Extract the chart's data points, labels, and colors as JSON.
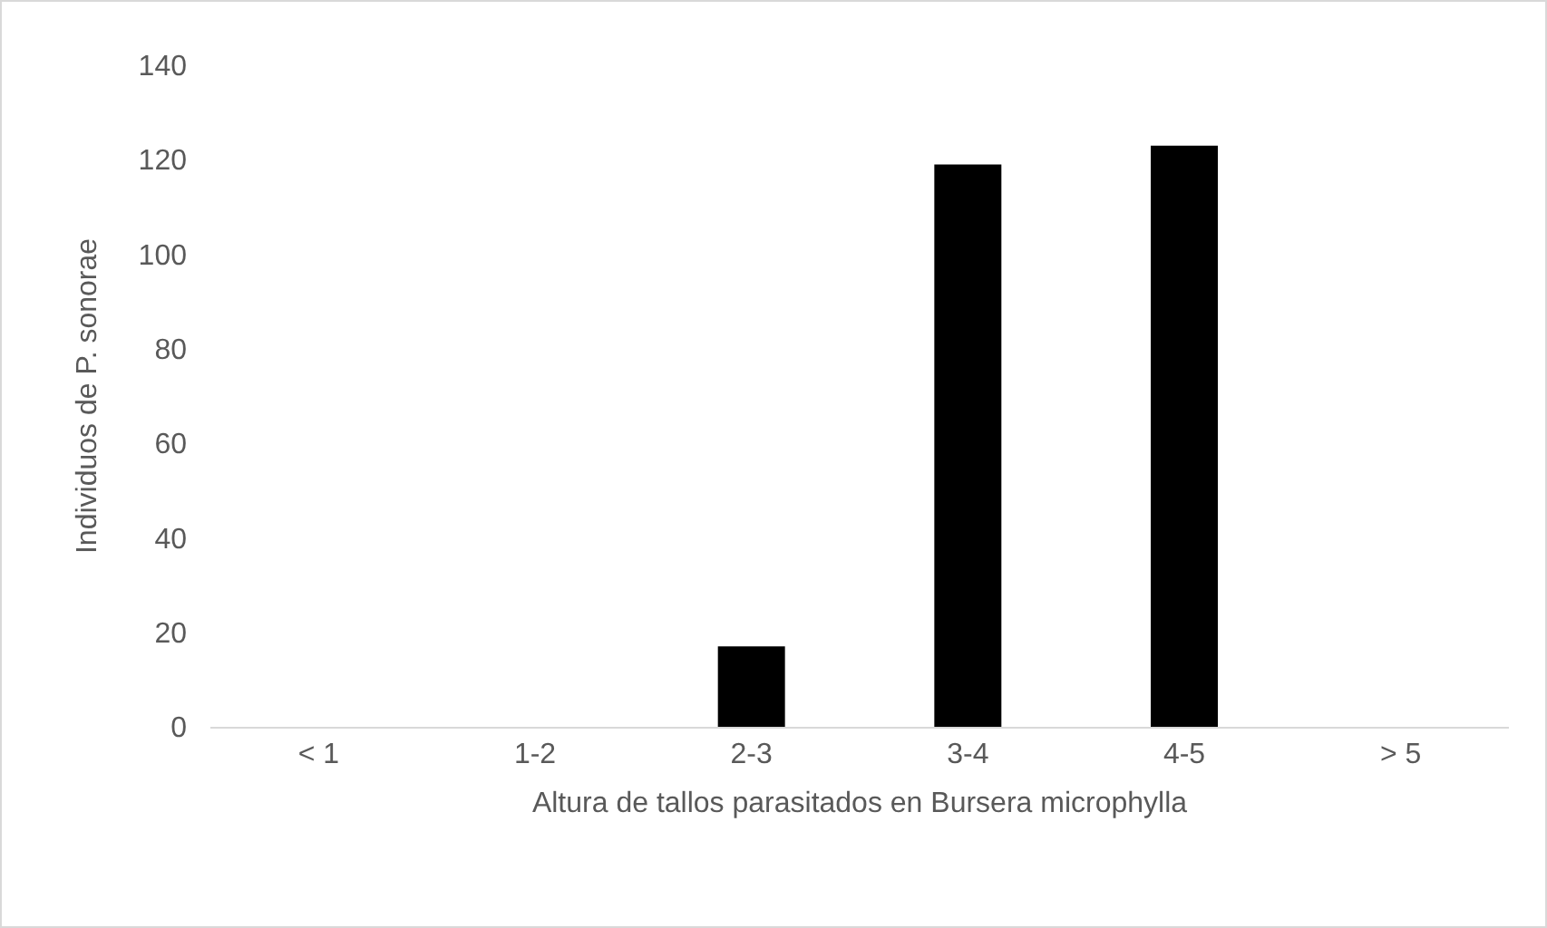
{
  "chart_data": {
    "type": "bar",
    "xlabel": "Altura de tallos parasitados en Bursera microphylla",
    "ylabel": "Individuos de P. sonorae",
    "categories": [
      "< 1",
      "1-2",
      "2-3",
      "3-4",
      "4-5",
      "> 5"
    ],
    "values": [
      0,
      0,
      17,
      119,
      123,
      0
    ],
    "color": "#000000",
    "ylim": [
      0,
      140
    ],
    "yticks": [
      0,
      20,
      40,
      60,
      80,
      100,
      120,
      140
    ],
    "grid": false,
    "legend": false
  }
}
